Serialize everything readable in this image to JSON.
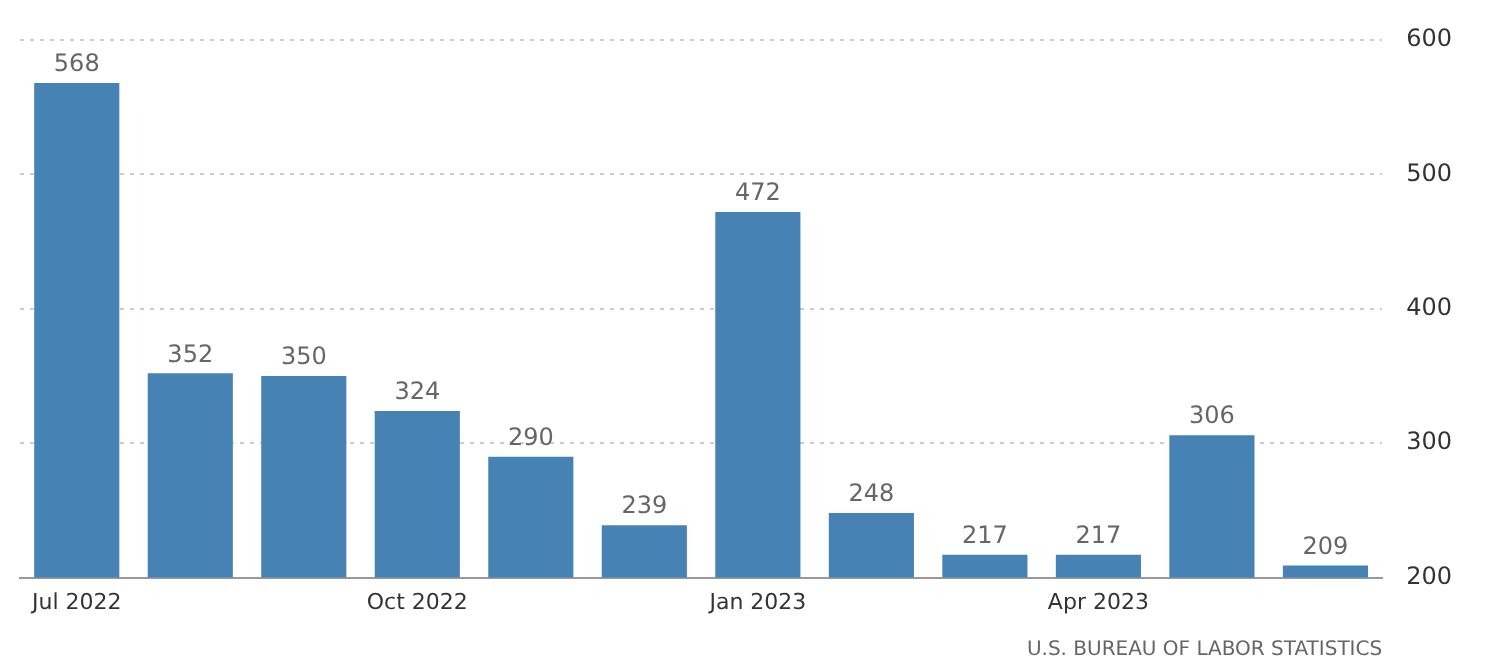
{
  "chart_data": {
    "type": "bar",
    "categories": [
      "Jul 2022",
      null,
      null,
      "Oct 2022",
      null,
      null,
      "Jan 2023",
      null,
      null,
      "Apr 2023",
      null,
      null
    ],
    "values": [
      568,
      352,
      350,
      324,
      290,
      239,
      472,
      248,
      217,
      217,
      306,
      209
    ],
    "color": "#4682b4",
    "ylim": [
      200,
      600
    ],
    "yticks": [
      200,
      300,
      400,
      500,
      600
    ],
    "grid": "y",
    "legend": false,
    "data_labels": true,
    "annotations": [
      "U.S. BUREAU OF LABOR STATISTICS"
    ]
  }
}
